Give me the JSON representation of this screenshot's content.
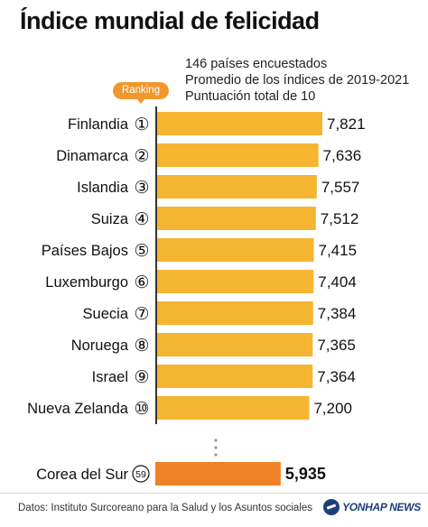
{
  "header": {
    "title": "Índice mundial de felicidad",
    "subtitle_lines": [
      "146 países encuestados",
      "Promedio de los índices de 2019-2021",
      "Puntuación total de 10"
    ],
    "ranking_label": "Ranking"
  },
  "chart_data": {
    "type": "bar",
    "orientation": "horizontal",
    "categories": [
      "Finlandia",
      "Dinamarca",
      "Islandia",
      "Suiza",
      "Países Bajos",
      "Luxemburgo",
      "Suecia",
      "Noruega",
      "Israel",
      "Nueva Zelanda",
      "Corea del Sur"
    ],
    "ranks": [
      "①",
      "②",
      "③",
      "④",
      "⑤",
      "⑥",
      "⑦",
      "⑧",
      "⑨",
      "⑩",
      "59"
    ],
    "values": [
      7.821,
      7.636,
      7.557,
      7.512,
      7.415,
      7.404,
      7.384,
      7.365,
      7.364,
      7.2,
      5.935
    ],
    "value_labels": [
      "7,821",
      "7,636",
      "7,557",
      "7,512",
      "7,415",
      "7,404",
      "7,384",
      "7,365",
      "7,364",
      "7,200",
      "5,935"
    ],
    "highlight_index": 10,
    "colors": {
      "bar": "#f5b531",
      "highlight": "#ef8126",
      "axis": "#333333"
    }
  },
  "footer": {
    "source": "Datos: Instituto Surcoreano para la Salud y los Asuntos sociales",
    "brand": "YONHAP NEWS"
  }
}
